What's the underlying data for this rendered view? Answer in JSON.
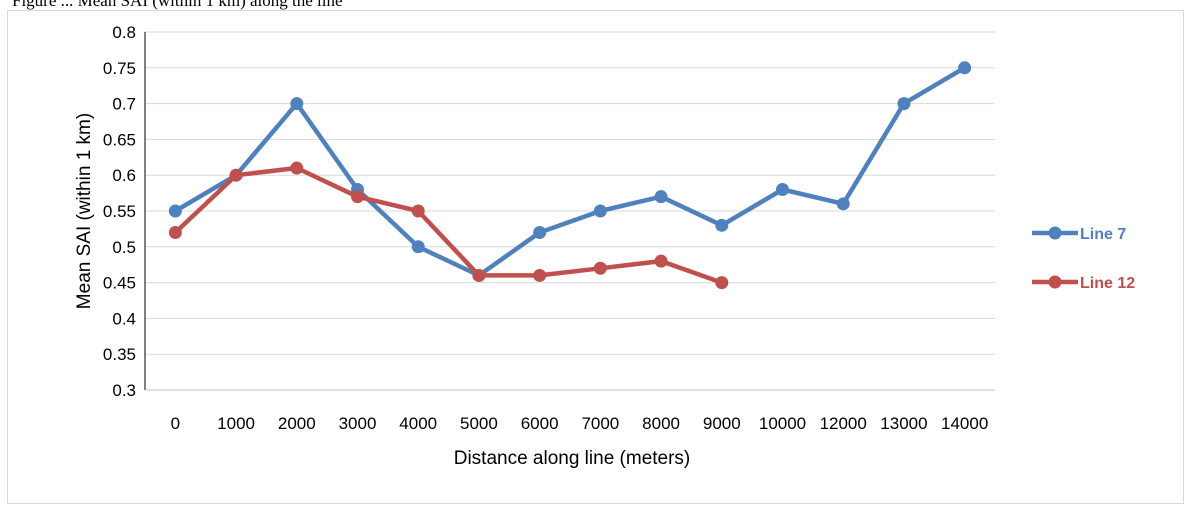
{
  "caption": {
    "text": "Figure ... Mean SAI (within 1 km) along the line"
  },
  "chart_data": {
    "type": "line",
    "categories": [
      "0",
      "1000",
      "2000",
      "3000",
      "4000",
      "5000",
      "6000",
      "7000",
      "8000",
      "9000",
      "10000",
      "12000",
      "13000",
      "14000"
    ],
    "series": [
      {
        "name": "Line 7",
        "color": "#4f81bd",
        "values": [
          0.55,
          0.6,
          0.7,
          0.58,
          0.5,
          0.46,
          0.52,
          0.55,
          0.57,
          0.53,
          0.58,
          0.56,
          0.7,
          0.75
        ]
      },
      {
        "name": "Line 12",
        "color": "#c0504d",
        "values": [
          0.52,
          0.6,
          0.61,
          0.57,
          0.55,
          0.46,
          0.46,
          0.47,
          0.48,
          0.45,
          null,
          null,
          null,
          null
        ]
      }
    ],
    "xlabel": "Distance along line (meters)",
    "ylabel": "Mean SAI (within 1 km)",
    "ylim": [
      0.3,
      0.8
    ],
    "yticks": [
      "0.3",
      "0.35",
      "0.4",
      "0.45",
      "0.5",
      "0.55",
      "0.6",
      "0.65",
      "0.7",
      "0.75",
      "0.8"
    ],
    "grid": true,
    "legend_position": "right"
  }
}
